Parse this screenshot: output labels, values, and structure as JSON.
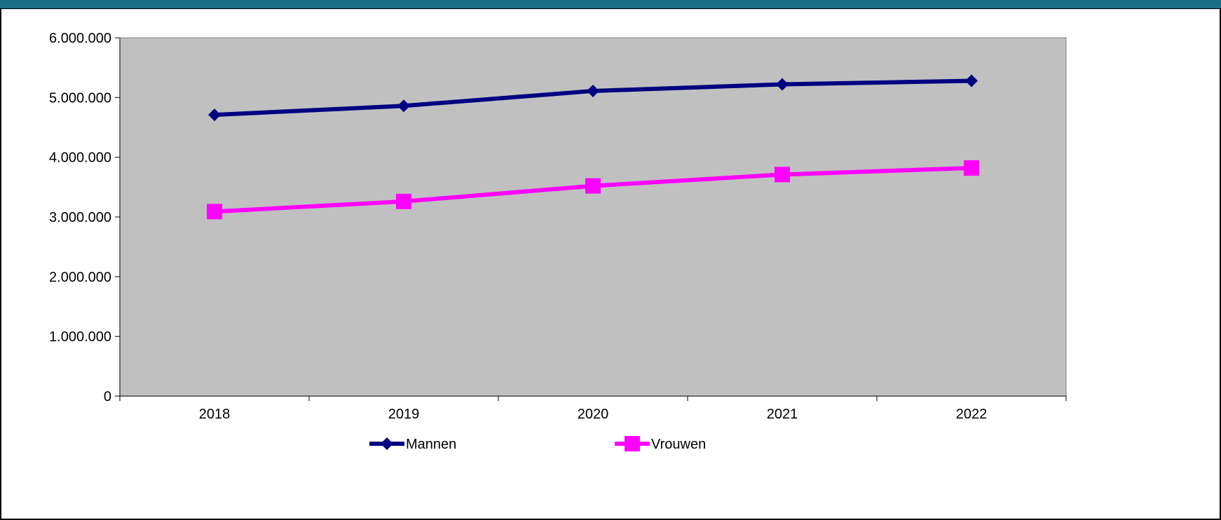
{
  "chart_data": {
    "type": "line",
    "title": "",
    "xlabel": "",
    "ylabel": "",
    "categories": [
      "2018",
      "2019",
      "2020",
      "2021",
      "2022"
    ],
    "ylim": [
      0,
      6000000
    ],
    "yticks": [
      0,
      1000000,
      2000000,
      3000000,
      4000000,
      5000000,
      6000000
    ],
    "ytick_labels": [
      "0",
      "1.000.000",
      "2.000.000",
      "3.000.000",
      "4.000.000",
      "5.000.000",
      "6.000.000"
    ],
    "grid": false,
    "legend_position": "bottom",
    "plot_background": "#c0c0c0",
    "series": [
      {
        "name": "Mannen",
        "values": [
          4710000,
          4860000,
          5110000,
          5220000,
          5280000
        ],
        "color": "#000080",
        "marker": "diamond"
      },
      {
        "name": "Vrouwen",
        "values": [
          3090000,
          3260000,
          3520000,
          3710000,
          3820000
        ],
        "color": "#ff00ff",
        "marker": "square"
      }
    ]
  }
}
